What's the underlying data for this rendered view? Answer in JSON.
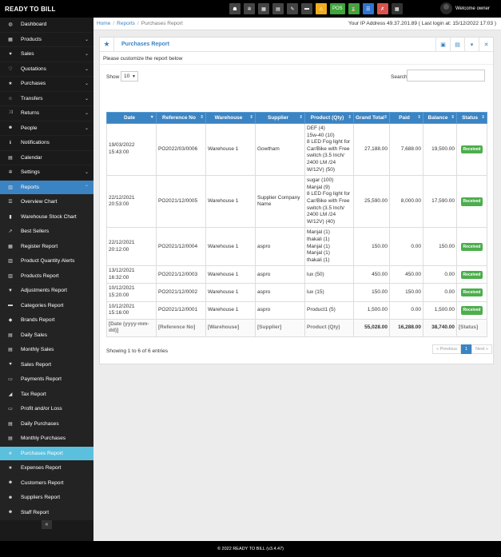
{
  "brand": "READY TO BILL",
  "topbar": {
    "pos_label": "POS",
    "welcome": "Welcome owner"
  },
  "sidebar": {
    "items": [
      {
        "label": "Dashboard",
        "icon": "dashboard-icon",
        "glyph": "◍",
        "chev": ""
      },
      {
        "label": "Products",
        "icon": "products-icon",
        "glyph": "▦",
        "chev": "⌄"
      },
      {
        "label": "Sales",
        "icon": "heart-icon",
        "glyph": "♥",
        "chev": "⌄"
      },
      {
        "label": "Quotations",
        "icon": "heart-outline-icon",
        "glyph": "♡",
        "chev": "⌄"
      },
      {
        "label": "Purchases",
        "icon": "star-icon",
        "glyph": "★",
        "chev": "⌄"
      },
      {
        "label": "Transfers",
        "icon": "star-outline-icon",
        "glyph": "☆",
        "chev": "⌄"
      },
      {
        "label": "Returns",
        "icon": "random-icon",
        "glyph": "⤨",
        "chev": "⌄"
      },
      {
        "label": "People",
        "icon": "users-icon",
        "glyph": "☻",
        "chev": "⌄"
      },
      {
        "label": "Notifications",
        "icon": "info-icon",
        "glyph": "ℹ",
        "chev": ""
      },
      {
        "label": "Calendar",
        "icon": "calendar-icon",
        "glyph": "▤",
        "chev": ""
      },
      {
        "label": "Settings",
        "icon": "cog-icon",
        "glyph": "✲",
        "chev": "⌄"
      },
      {
        "label": "Reports",
        "icon": "bar-chart-icon",
        "glyph": "▥",
        "chev": "⌃"
      }
    ],
    "report_items": [
      {
        "label": "Overview Chart",
        "icon": "list-icon",
        "glyph": "☰"
      },
      {
        "label": "Warehouse Stock Chart",
        "icon": "building-icon",
        "glyph": "▮"
      },
      {
        "label": "Best Sellers",
        "icon": "line-chart-icon",
        "glyph": "↗"
      },
      {
        "label": "Register Report",
        "icon": "register-icon",
        "glyph": "▦"
      },
      {
        "label": "Product Quantity Alerts",
        "icon": "chart-icon",
        "glyph": "▥"
      },
      {
        "label": "Products Report",
        "icon": "barcode-icon",
        "glyph": "▥"
      },
      {
        "label": "Adjustments Report",
        "icon": "filter-icon",
        "glyph": "▼"
      },
      {
        "label": "Categories Report",
        "icon": "folder-icon",
        "glyph": "▬"
      },
      {
        "label": "Brands Report",
        "icon": "th-icon",
        "glyph": "◆"
      },
      {
        "label": "Daily Sales",
        "icon": "calendar-icon",
        "glyph": "▤"
      },
      {
        "label": "Monthly Sales",
        "icon": "calendar-icon",
        "glyph": "▤"
      },
      {
        "label": "Sales Report",
        "icon": "heart-icon",
        "glyph": "♥"
      },
      {
        "label": "Payments Report",
        "icon": "money-icon",
        "glyph": "▭"
      },
      {
        "label": "Tax Report",
        "icon": "area-chart-icon",
        "glyph": "◢"
      },
      {
        "label": "Profit and/or Loss",
        "icon": "money-icon",
        "glyph": "▭"
      },
      {
        "label": "Daily Purchases",
        "icon": "calendar-icon",
        "glyph": "▤"
      },
      {
        "label": "Monthly Purchases",
        "icon": "calendar-icon",
        "glyph": "▤"
      },
      {
        "label": "Purchases Report",
        "icon": "star-icon",
        "glyph": "★"
      },
      {
        "label": "Expenses Report",
        "icon": "star-icon",
        "glyph": "★"
      },
      {
        "label": "Customers Report",
        "icon": "users-icon",
        "glyph": "☻"
      },
      {
        "label": "Suppliers Report",
        "icon": "users-icon",
        "glyph": "☻"
      },
      {
        "label": "Staff Report",
        "icon": "users-icon",
        "glyph": "☻"
      }
    ],
    "collapse_glyph": "«"
  },
  "breadcrumb": {
    "home": "Home",
    "reports": "Reports",
    "current": "Purchases Report"
  },
  "ip_info": "Your IP Address 49.37.201.89 ( Last login at: 15/12/2022 17:03 )",
  "panel": {
    "title": "Purchases Report",
    "note": "Please customize the report below"
  },
  "controls": {
    "show_label": "Show",
    "show_value": "10",
    "search_label": "Search",
    "search_value": ""
  },
  "table": {
    "columns": [
      "Date",
      "Reference No",
      "Warehouse",
      "Supplier",
      "Product (Qty)",
      "Grand Total",
      "Paid",
      "Balance",
      "Status"
    ],
    "rows": [
      {
        "date": "19/03/2022 15:43:00",
        "ref": "PO2022/03/0006",
        "warehouse": "Warehouse 1",
        "supplier": "Gowtham",
        "products": [
          "DEF (4)",
          "15w-40 (10)",
          "8 LED Fog light for Car/Bike with Free switch (3.5 Inch/ 2400 LM /24 W/12V) (50)"
        ],
        "grand": "27,188.00",
        "paid": "7,688.00",
        "balance": "19,500.00",
        "status": "Received"
      },
      {
        "date": "22/12/2021 20:53:00",
        "ref": "PO2021/12/0005",
        "warehouse": "Warehouse 1",
        "supplier": "Supplier Company Name",
        "products": [
          "sugar (100)",
          "Manjal (9)",
          "8 LED Fog light for Car/Bike with Free switch (3.5 Inch/ 2400 LM /24 W/12V) (40)"
        ],
        "grand": "25,590.00",
        "paid": "8,000.00",
        "balance": "17,590.00",
        "status": "Received"
      },
      {
        "date": "22/12/2021 20:12:00",
        "ref": "PO2021/12/0004",
        "warehouse": "Warehouse 1",
        "supplier": "aspro",
        "products": [
          "Manjal (1)",
          "thakali (1)",
          "Manjal (1)",
          "Manjal (1)",
          "thakali (1)"
        ],
        "grand": "150.00",
        "paid": "0.00",
        "balance": "150.00",
        "status": "Received"
      },
      {
        "date": "13/12/2021 16:32:00",
        "ref": "PO2021/12/0003",
        "warehouse": "Warehouse 1",
        "supplier": "aspro",
        "products": [
          "lux (50)"
        ],
        "grand": "450.00",
        "paid": "450.00",
        "balance": "0.00",
        "status": "Received"
      },
      {
        "date": "10/12/2021 15:20:00",
        "ref": "PO2021/12/0002",
        "warehouse": "Warehouse 1",
        "supplier": "aspro",
        "products": [
          "lux (15)"
        ],
        "grand": "150.00",
        "paid": "150.00",
        "balance": "0.00",
        "status": "Received"
      },
      {
        "date": "10/12/2021 15:16:00",
        "ref": "PO2021/12/0001",
        "warehouse": "Warehouse 1",
        "supplier": "aspro",
        "products": [
          "Product1 (5)"
        ],
        "grand": "1,500.00",
        "paid": "0.00",
        "balance": "1,500.00",
        "status": "Received"
      }
    ],
    "footer": [
      "[Date (yyyy-mm-dd)]",
      "[Reference No]",
      "[Warehouse]",
      "[Supplier]",
      "Product (Qty)",
      "55,028.00",
      "16,288.00",
      "38,740.00",
      "[Status]"
    ]
  },
  "showing_text": "Showing 1 to 6 of 6 entries",
  "pager": {
    "prev": "« Previous",
    "page": "1",
    "next": "Next »"
  },
  "footer": "© 2022 READY TO BILL (v3.4.47)",
  "colors": {
    "accent": "#3b84c3",
    "received": "#4cae4c",
    "active_menu": "#5bc0de"
  }
}
